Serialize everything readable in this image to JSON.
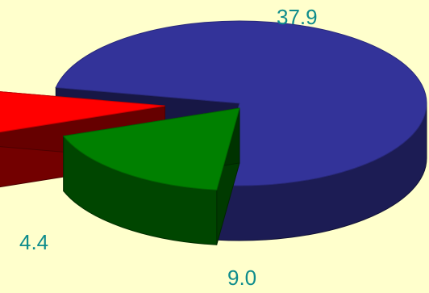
{
  "chart_data": {
    "type": "pie",
    "style": "3d-exploded",
    "values": [
      37.9,
      9.0,
      4.4
    ],
    "data_labels": [
      "37.9",
      "9.0",
      "4.4"
    ],
    "colors": [
      "#333399",
      "#008000",
      "#FF0000"
    ],
    "legend": false
  },
  "colors": {
    "background": "#FFFFCC",
    "label_text": "#0E8C8C"
  }
}
